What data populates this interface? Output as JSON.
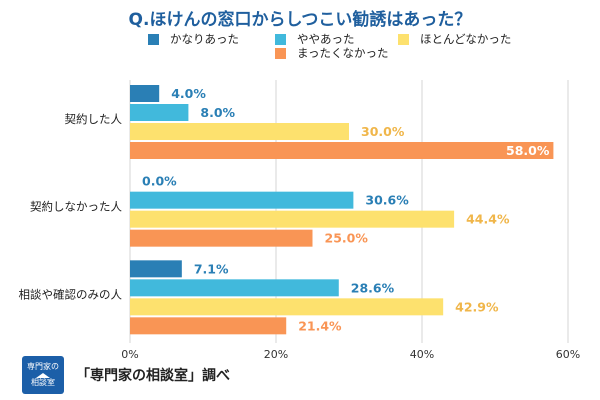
{
  "logo": {
    "text": "専門家の相談室"
  },
  "footer": {
    "source": "「専門家の相談室」調べ"
  },
  "chart_data": {
    "type": "bar",
    "orientation": "horizontal",
    "title": "Q.ほけんの窓口からしつこい勧誘はあった？",
    "categories": [
      "契約した人",
      "契約しなかった人",
      "相談や確認のみの人"
    ],
    "series": [
      {
        "name": "かなりあった",
        "color": "#2a7fb5",
        "values": [
          4.0,
          0.0,
          7.1
        ]
      },
      {
        "name": "ややあった",
        "color": "#41b9dc",
        "values": [
          8.0,
          30.6,
          28.6
        ]
      },
      {
        "name": "ほとんどなかった",
        "color": "#fde16e",
        "values": [
          30.0,
          44.4,
          42.9
        ]
      },
      {
        "name": "まったくなかった",
        "color": "#f99555",
        "values": [
          58.0,
          25.0,
          21.4
        ]
      }
    ],
    "label_colors": [
      "#2a7fb5",
      "#2a7fb5",
      "#f0b64a",
      "#f99555"
    ],
    "special_label_colors": {
      "0-3": "#ffffff"
    },
    "xlim": [
      0,
      60
    ],
    "xticks": [
      "0%",
      "20%",
      "40%",
      "60%"
    ],
    "grid": true,
    "legend_position": "top"
  }
}
